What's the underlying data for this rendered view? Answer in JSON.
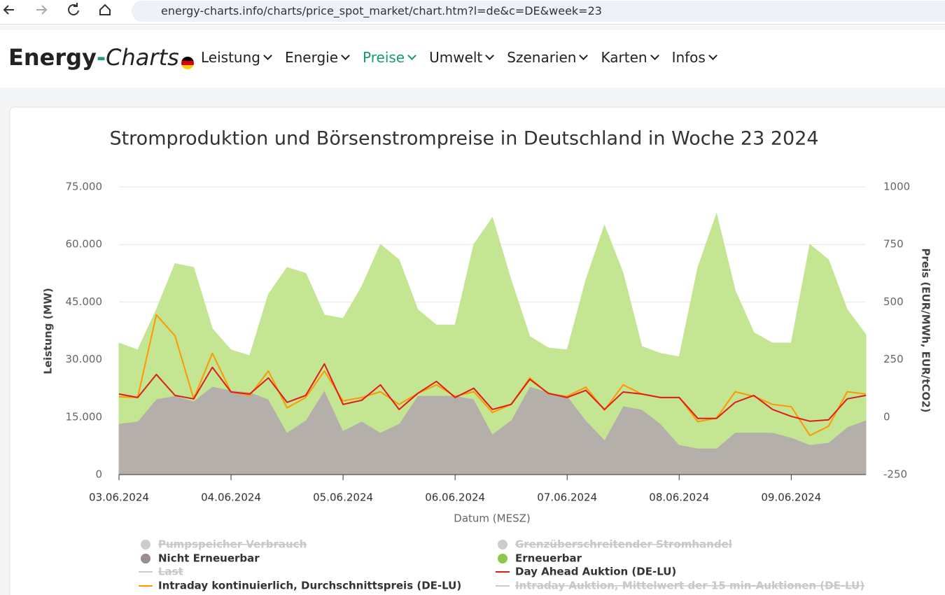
{
  "browser": {
    "url": "energy-charts.info/charts/price_spot_market/chart.htm?l=de&c=DE&week=23"
  },
  "nav": {
    "logo": [
      "Energy",
      "-",
      "Charts"
    ],
    "items": [
      "Leistung",
      "Energie",
      "Preise",
      "Umwelt",
      "Szenarien",
      "Karten",
      "Infos"
    ],
    "active": 2
  },
  "chart_data": {
    "type": "area",
    "stacked": true,
    "title": "Stromproduktion und Börsenstrompreise in Deutschland in Woche 23 2024",
    "xlabel": "Datum (MESZ)",
    "ylabel": "Leistung (MW)",
    "y2label": "Preis (EUR/MWh, EUR/tCO2)",
    "x": [
      0,
      4,
      8,
      12,
      16,
      20,
      24,
      28,
      32,
      36,
      40,
      44,
      48,
      52,
      56,
      60,
      64,
      68,
      72,
      76,
      80,
      84,
      88,
      92,
      96,
      100,
      104,
      108,
      112,
      116,
      120,
      124,
      128,
      132,
      136,
      140,
      144,
      148,
      152,
      156,
      160
    ],
    "xlim": [
      0,
      160
    ],
    "xticks": [
      {
        "value": 0,
        "label": "03.06.2024"
      },
      {
        "value": 24,
        "label": "04.06.2024"
      },
      {
        "value": 48,
        "label": "05.06.2024"
      },
      {
        "value": 72,
        "label": "06.06.2024"
      },
      {
        "value": 96,
        "label": "07.06.2024"
      },
      {
        "value": 120,
        "label": "08.06.2024"
      },
      {
        "value": 144,
        "label": "09.06.2024"
      }
    ],
    "ylim": [
      0,
      75000
    ],
    "yticks": [
      0,
      {
        "value": 15000,
        "label": "15.000"
      },
      {
        "value": 30000,
        "label": "30.000"
      },
      {
        "value": 45000,
        "label": "45.000"
      },
      {
        "value": 60000,
        "label": "60.000"
      },
      {
        "value": 75000,
        "label": "75.000"
      }
    ],
    "y2lim": [
      -250,
      1000
    ],
    "y2ticks": [
      -250,
      0,
      250,
      500,
      750,
      1000
    ],
    "grid": true,
    "series": [
      {
        "name": "Nicht Erneuerbar",
        "type": "area",
        "color": "#b5afac",
        "legend_color": "#9a8f8a",
        "values": [
          13300,
          13900,
          19700,
          20600,
          19200,
          23000,
          22000,
          21500,
          19700,
          11000,
          14200,
          22000,
          11500,
          13900,
          11000,
          13300,
          20600,
          20600,
          20600,
          19700,
          10600,
          14200,
          23000,
          21500,
          20600,
          14200,
          9100,
          17900,
          17000,
          13300,
          7800,
          6900,
          6900,
          11000,
          11000,
          11000,
          9700,
          7800,
          8400,
          12400,
          14200
        ]
      },
      {
        "name": "Erneuerbar",
        "type": "area",
        "color": "#c4e591",
        "legend_color": "#8cc84b",
        "values": [
          21000,
          18600,
          23300,
          34400,
          34800,
          15000,
          10500,
          9500,
          27300,
          43000,
          38300,
          19600,
          29200,
          35100,
          49000,
          42700,
          22400,
          18400,
          18400,
          40300,
          56400,
          36500,
          13000,
          11500,
          11900,
          36500,
          55900,
          34600,
          16400,
          18300,
          22900,
          47100,
          61100,
          37000,
          26000,
          23300,
          24600,
          52200,
          47600,
          30600,
          22300
        ]
      },
      {
        "name": "Intraday kontinuierlich, Durchschnittspreis (DE-LU)",
        "type": "line",
        "axis": "y2",
        "color": "#ff9800",
        "values": [
          88,
          85,
          444,
          353,
          79,
          277,
          109,
          94,
          200,
          40,
          85,
          200,
          70,
          85,
          110,
          55,
          103,
          140,
          90,
          110,
          20,
          55,
          170,
          100,
          90,
          130,
          30,
          140,
          100,
          85,
          85,
          -20,
          -5,
          110,
          90,
          55,
          45,
          -80,
          -40,
          110,
          100
        ]
      },
      {
        "name": "Day Ahead Auktion (DE-LU)",
        "type": "line",
        "axis": "y2",
        "color": "#e01b1b",
        "values": [
          100,
          85,
          185,
          94,
          79,
          216,
          109,
          100,
          170,
          64,
          94,
          231,
          55,
          73,
          140,
          33,
          103,
          155,
          85,
          125,
          33,
          55,
          164,
          103,
          85,
          116,
          33,
          109,
          100,
          85,
          85,
          -6,
          -6,
          64,
          94,
          33,
          3,
          -18,
          -12,
          79,
          94
        ]
      }
    ],
    "hidden_series": [
      "Pumpspeicher Verbrauch",
      "Grenzüberschreitender Stromhandel",
      "Last",
      "Intraday Auktion, Mittelwert der 15 min-Auktionen (DE-LU)"
    ]
  }
}
